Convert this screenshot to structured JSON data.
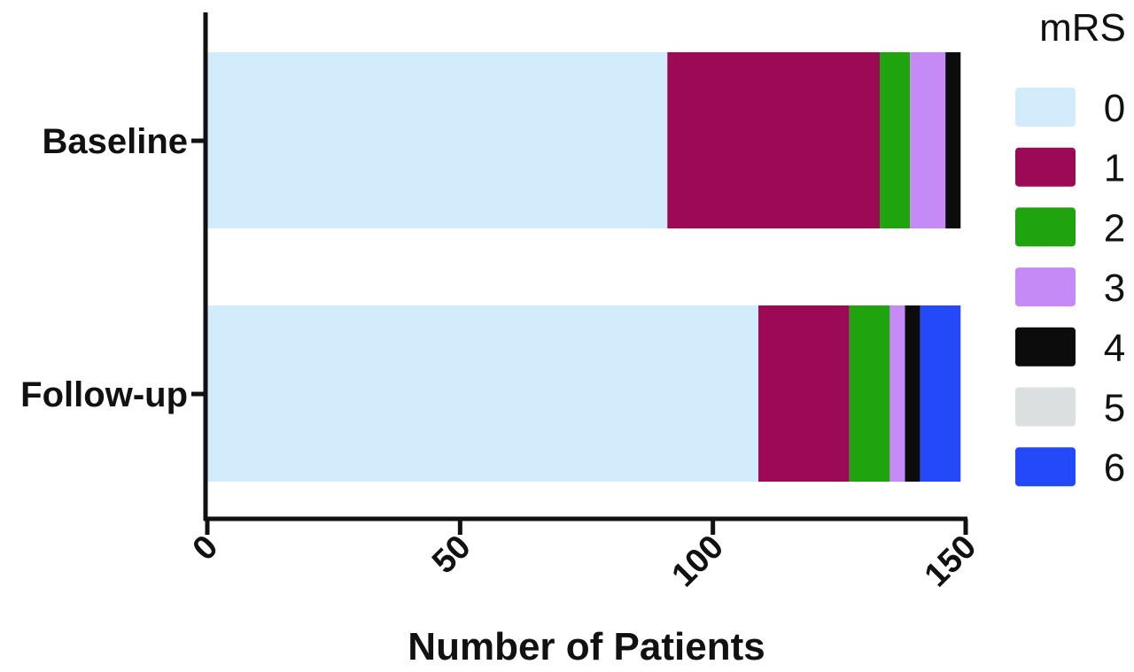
{
  "chart_data": {
    "type": "bar",
    "orientation": "horizontal",
    "stacked": true,
    "categories": [
      "Baseline",
      "Follow-up"
    ],
    "series": [
      {
        "name": "0",
        "color": "#d3ecfb",
        "values": [
          91,
          109
        ]
      },
      {
        "name": "1",
        "color": "#9c0a55",
        "values": [
          42,
          18
        ]
      },
      {
        "name": "2",
        "color": "#1fa30e",
        "values": [
          6,
          8
        ]
      },
      {
        "name": "3",
        "color": "#c58af5",
        "values": [
          7,
          3
        ]
      },
      {
        "name": "4",
        "color": "#0c0c0c",
        "values": [
          3,
          3
        ]
      },
      {
        "name": "5",
        "color": "#dcdfdf",
        "values": [
          0,
          0
        ]
      },
      {
        "name": "6",
        "color": "#2349f8",
        "values": [
          0,
          8
        ]
      }
    ],
    "xlabel": "Number of Patients",
    "ylabel": "",
    "xlim": [
      0,
      150
    ],
    "xticks": [
      0,
      50,
      100,
      150
    ],
    "legend_title": "mRS",
    "legend_position": "right",
    "grid": false
  }
}
